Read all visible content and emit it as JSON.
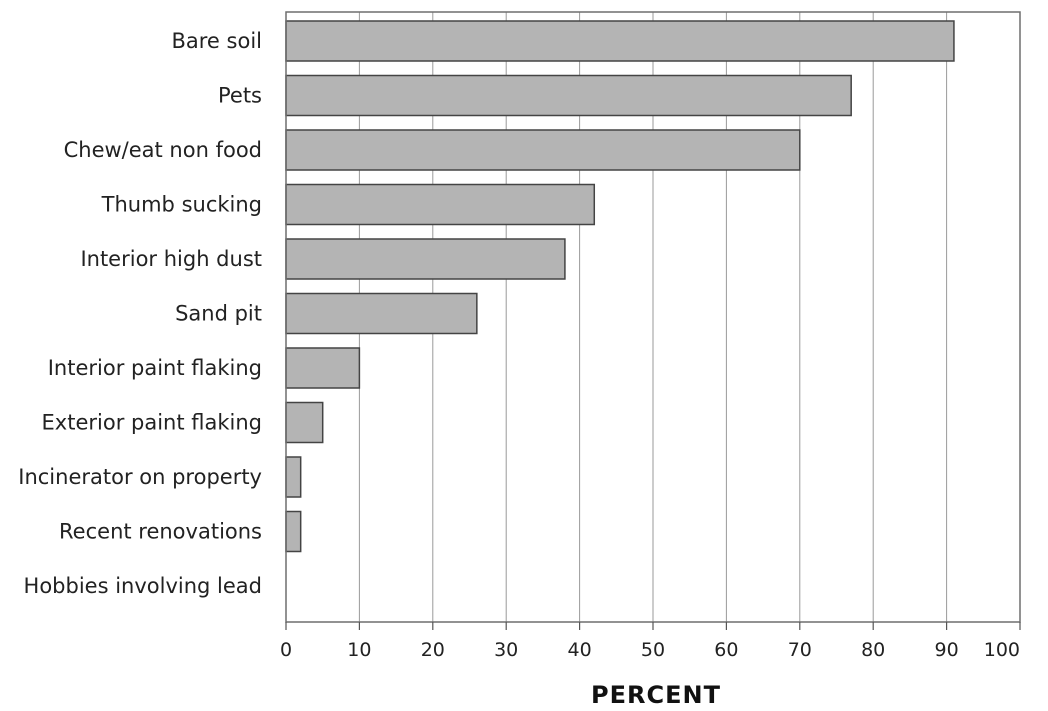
{
  "chart_data": {
    "type": "bar",
    "orientation": "horizontal",
    "categories": [
      "Bare soil",
      "Pets",
      "Chew/eat non food",
      "Thumb sucking",
      "Interior high dust",
      "Sand pit",
      "Interior paint flaking",
      "Exterior paint flaking",
      "Incinerator on property",
      "Recent renovations",
      "Hobbies involving lead"
    ],
    "values": [
      91,
      77,
      70,
      42,
      38,
      26,
      10,
      5,
      2,
      2,
      0
    ],
    "xlabel": "PERCENT",
    "xlim": [
      0,
      100
    ],
    "xticks": [
      "0",
      "10",
      "20",
      "30",
      "40",
      "50",
      "60",
      "70",
      "80",
      "90",
      "100"
    ],
    "grid": "vertical",
    "colors": {
      "bar_fill": "#b4b4b4",
      "bar_stroke": "#444444",
      "grid": "#9a9a9a"
    }
  }
}
